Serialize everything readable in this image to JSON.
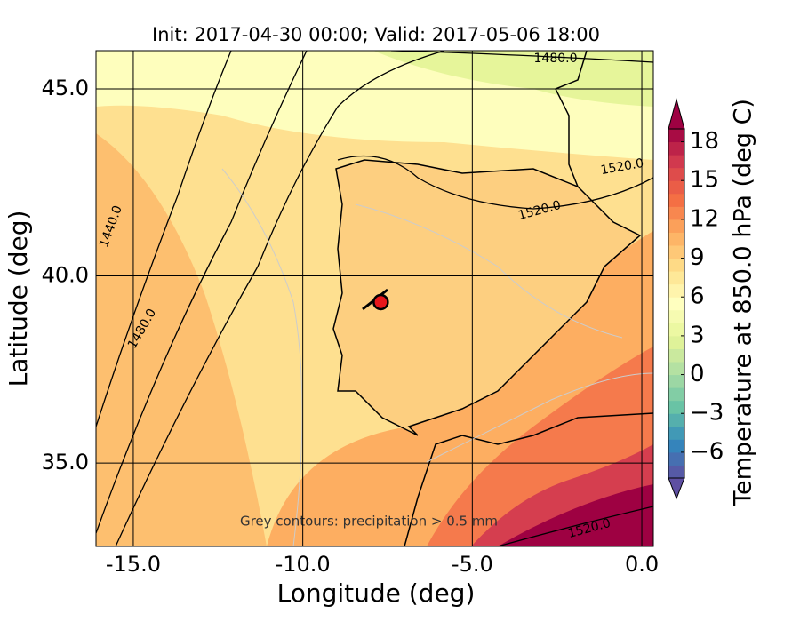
{
  "title": "Init: 2017-04-30 00:00; Valid: 2017-05-06 18:00",
  "xlabel": "Longitude (deg)",
  "ylabel": "Latitude (deg)",
  "xlim": [
    -16.1,
    0.34
  ],
  "ylim": [
    32.77,
    46.02
  ],
  "xticks": [
    {
      "value": -15,
      "label": "-15.0"
    },
    {
      "value": -10,
      "label": "-10.0"
    },
    {
      "value": -5,
      "label": "-5.0"
    },
    {
      "value": 0,
      "label": "0.0"
    }
  ],
  "yticks": [
    {
      "value": 35,
      "label": "35.0"
    },
    {
      "value": 40,
      "label": "40.0"
    },
    {
      "value": 45,
      "label": "45.0"
    }
  ],
  "marker": {
    "lon": -7.7,
    "lat": 39.3,
    "color": "#e8161b"
  },
  "contour_labels": [
    "1480.0",
    "1520.0",
    "1520.0",
    "1440.0",
    "1480.0",
    "1520.0"
  ],
  "annotation": "Grey contours: precipitation > 0.5 mm",
  "colorbar": {
    "label": "Temperature at 850.0 hPa (deg C)",
    "clim": [
      -8,
      19
    ],
    "ticks": [
      {
        "value": -6,
        "label": "−6"
      },
      {
        "value": -3,
        "label": "−3"
      },
      0,
      3,
      6,
      9,
      12,
      15,
      18
    ],
    "colors": [
      "#5e4fa2",
      "#3288bd",
      "#66c2a5",
      "#abdda4",
      "#e6f598",
      "#ffffbf",
      "#fee08b",
      "#fdae61",
      "#f46d43",
      "#d53e4f",
      "#9e0142"
    ]
  }
}
